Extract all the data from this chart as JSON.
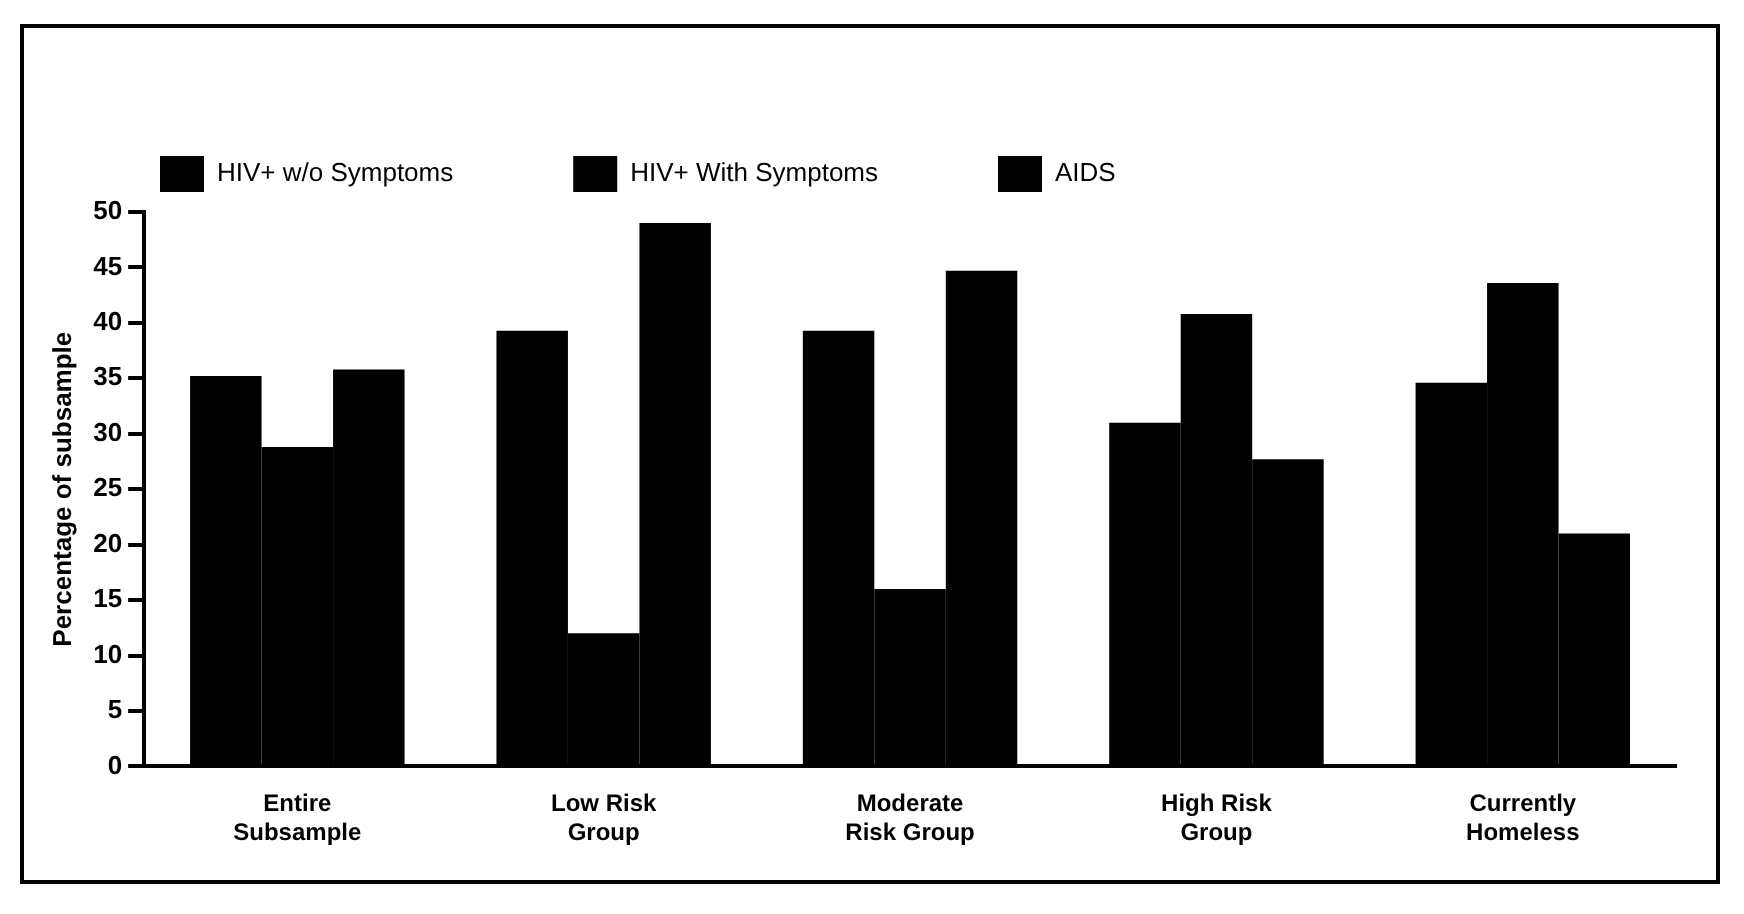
{
  "chart_data": {
    "type": "bar",
    "ylabel": "Percentage of subsample",
    "categories": [
      "Entire\nSubsample",
      "Low Risk\nGroup",
      "Moderate\nRisk Group",
      "High Risk\nGroup",
      "Currently\nHomeless"
    ],
    "series": [
      {
        "name": "HIV+ w/o Symptoms",
        "color": "#000000",
        "values": [
          35.2,
          39.3,
          39.3,
          31,
          34.6
        ]
      },
      {
        "name": "HIV+ With Symptoms",
        "color": "#000000",
        "values": [
          28.8,
          12,
          16,
          40.8,
          43.6
        ]
      },
      {
        "name": "AIDS",
        "color": "#000000",
        "values": [
          35.8,
          49,
          44.7,
          27.7,
          21
        ]
      }
    ],
    "ylim": [
      0,
      50
    ],
    "yticks": [
      0,
      5,
      10,
      15,
      20,
      25,
      30,
      35,
      40,
      45,
      50
    ],
    "grid": false,
    "legend": "top"
  }
}
